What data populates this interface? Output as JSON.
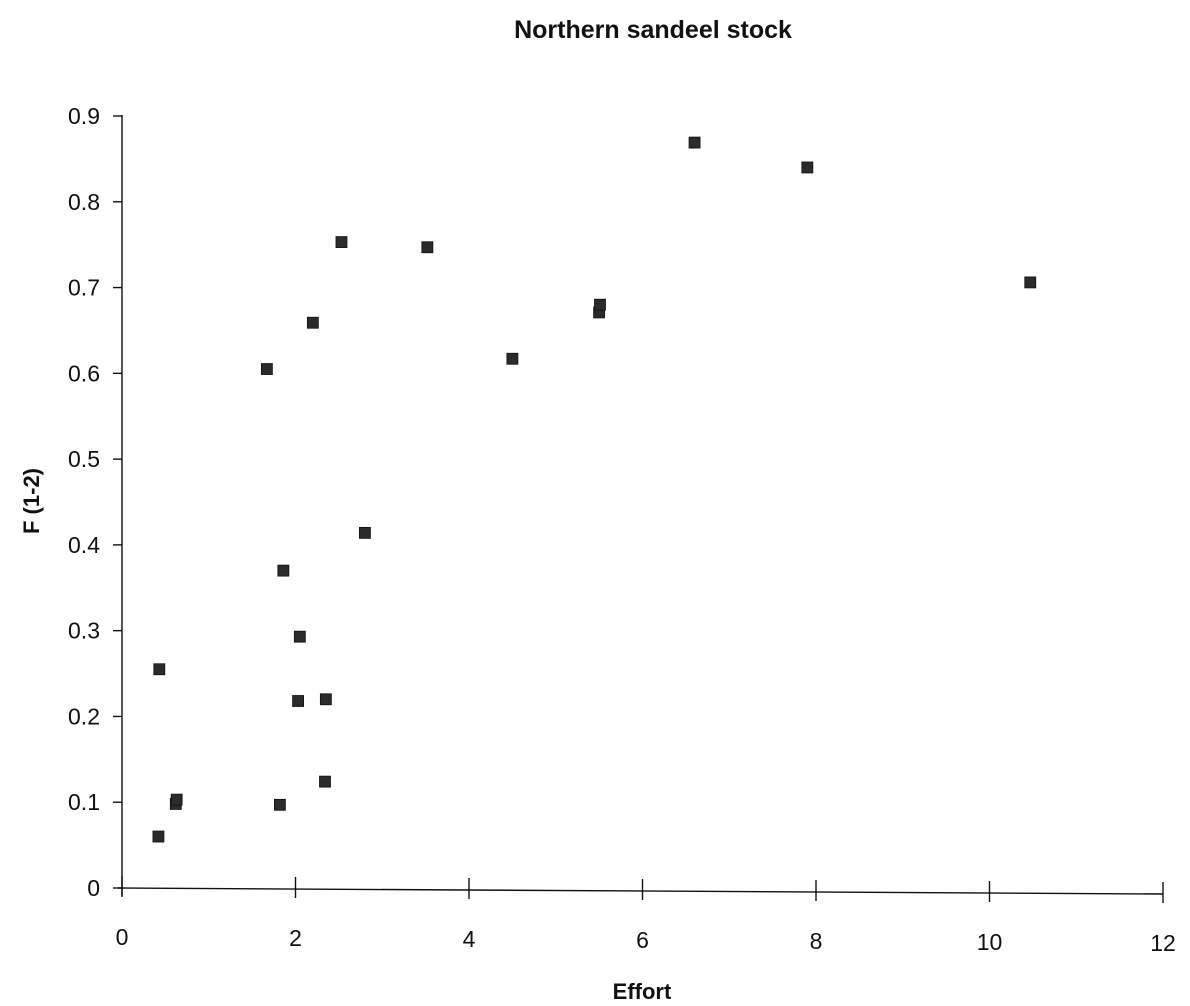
{
  "chart_data": {
    "type": "scatter",
    "title": "Northern sandeel stock",
    "xlabel": "Effort",
    "ylabel": "F (1-2)",
    "xlim": [
      0,
      12
    ],
    "ylim": [
      0,
      0.9
    ],
    "xticks": [
      "0",
      "2",
      "4",
      "6",
      "8",
      "10",
      "12"
    ],
    "yticks": [
      "0",
      "0.1",
      "0.2",
      "0.3",
      "0.4",
      "0.5",
      "0.6",
      "0.7",
      "0.8",
      "0.9"
    ],
    "grid": false,
    "legend": "none",
    "marker": "square",
    "marker_color": "#2b2b2b",
    "points": [
      {
        "x": 0.42,
        "y": 0.06
      },
      {
        "x": 0.43,
        "y": 0.255
      },
      {
        "x": 0.62,
        "y": 0.098
      },
      {
        "x": 0.63,
        "y": 0.103
      },
      {
        "x": 1.67,
        "y": 0.605
      },
      {
        "x": 1.82,
        "y": 0.097
      },
      {
        "x": 1.86,
        "y": 0.37
      },
      {
        "x": 2.03,
        "y": 0.218
      },
      {
        "x": 2.05,
        "y": 0.293
      },
      {
        "x": 2.2,
        "y": 0.659
      },
      {
        "x": 2.34,
        "y": 0.124
      },
      {
        "x": 2.35,
        "y": 0.22
      },
      {
        "x": 2.53,
        "y": 0.753
      },
      {
        "x": 2.8,
        "y": 0.414
      },
      {
        "x": 3.52,
        "y": 0.747
      },
      {
        "x": 4.5,
        "y": 0.617
      },
      {
        "x": 5.5,
        "y": 0.671
      },
      {
        "x": 5.51,
        "y": 0.68
      },
      {
        "x": 6.6,
        "y": 0.869
      },
      {
        "x": 7.9,
        "y": 0.84
      },
      {
        "x": 10.47,
        "y": 0.706
      }
    ]
  }
}
